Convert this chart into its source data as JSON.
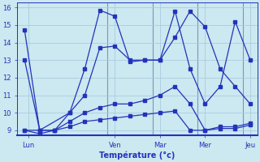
{
  "background_color": "#cce8f0",
  "grid_color": "#aacce0",
  "line_color": "#2233bb",
  "xlabel": "Température (°c)",
  "ylim": [
    8.7,
    16.3
  ],
  "xlim": [
    0,
    32
  ],
  "yticks": [
    9,
    10,
    11,
    12,
    13,
    14,
    15,
    16
  ],
  "xtick_positions": [
    1.5,
    13,
    19,
    25,
    31
  ],
  "xtick_labels": [
    "Lun",
    "Ven",
    "Mar",
    "Mer",
    "Jeu"
  ],
  "vlines": [
    12,
    18,
    24,
    30
  ],
  "line1_x": [
    1,
    3,
    7,
    9,
    11,
    13,
    15,
    17,
    19,
    21,
    23,
    25,
    27,
    29,
    31
  ],
  "line1_y": [
    14.7,
    9.0,
    10.0,
    12.5,
    15.85,
    15.5,
    12.9,
    13.0,
    13.0,
    14.3,
    15.8,
    14.9,
    12.5,
    11.5,
    10.5
  ],
  "line2_x": [
    1,
    3,
    5,
    7,
    9,
    11,
    13,
    15,
    17,
    19,
    21,
    23,
    25,
    27,
    29,
    31
  ],
  "line2_y": [
    13.0,
    9.0,
    9.0,
    10.0,
    11.0,
    13.7,
    13.8,
    13.0,
    13.0,
    13.0,
    15.8,
    12.5,
    10.5,
    11.5,
    15.2,
    13.0
  ],
  "line3_x": [
    1,
    3,
    5,
    7,
    9,
    11,
    13,
    15,
    17,
    19,
    21,
    23,
    25,
    27,
    29,
    31
  ],
  "line3_y": [
    9.0,
    8.8,
    9.0,
    9.5,
    10.0,
    10.3,
    10.5,
    10.5,
    10.7,
    11.0,
    11.5,
    10.5,
    9.0,
    9.2,
    9.2,
    9.4
  ],
  "line4_x": [
    1,
    3,
    5,
    7,
    9,
    11,
    13,
    15,
    17,
    19,
    21,
    23,
    25,
    27,
    29,
    31
  ],
  "line4_y": [
    9.0,
    9.0,
    9.0,
    9.2,
    9.5,
    9.6,
    9.7,
    9.8,
    9.9,
    10.0,
    10.1,
    9.0,
    9.0,
    9.1,
    9.1,
    9.3
  ],
  "figsize": [
    3.2,
    2.0
  ],
  "dpi": 100
}
